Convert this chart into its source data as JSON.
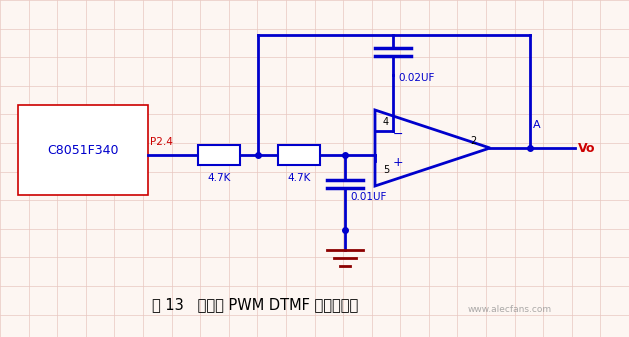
{
  "bg_color": "#fdf6f2",
  "grid_color": "#e8c8c0",
  "line_color": "#0000cc",
  "red_color": "#cc0000",
  "dark_red": "#8b0000",
  "title": "图 13   单片机 PWM DTMF 通信原理图",
  "title_fontsize": 10.5,
  "watermark": "www.alecfans.com",
  "chip_label": "C8051F340",
  "pin_label": "P2.4",
  "r1_label": "4.7K",
  "r2_label": "4.7K",
  "cap_top_label": "0.02UF",
  "cap_bot_label": "0.01UF",
  "node_A": "A",
  "node_Vo": "Vo",
  "pin4": "4",
  "pin5": "5",
  "pin2": "2"
}
